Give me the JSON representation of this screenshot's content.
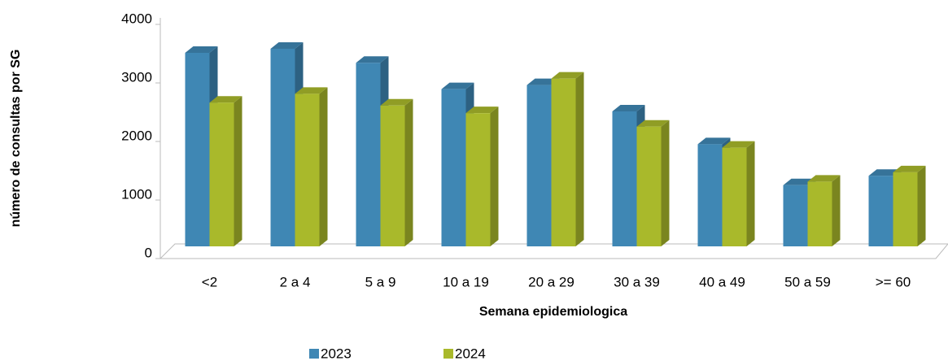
{
  "chart_data": {
    "type": "bar3d",
    "x_label": "Semana epidemiologica",
    "y_label": "número de consultas por SG",
    "categories": [
      "<2",
      "2 a 4",
      "5 a 9",
      "10 a 19",
      "20 a 29",
      "30 a 39",
      "40 a 49",
      "50 a 59",
      ">= 60"
    ],
    "series": [
      {
        "name": "2023",
        "color": "#3f87b4",
        "values": [
          3500,
          3570,
          3330,
          2880,
          2950,
          2500,
          1940,
          1240,
          1400
        ]
      },
      {
        "name": "2024",
        "color": "#a9b92b",
        "values": [
          2650,
          2800,
          2600,
          2470,
          3060,
          2240,
          1880,
          1300,
          1460
        ]
      }
    ],
    "ylim": [
      0,
      4000
    ],
    "yticks": [
      0,
      1000,
      2000,
      3000,
      4000
    ],
    "legend": "bottom"
  }
}
